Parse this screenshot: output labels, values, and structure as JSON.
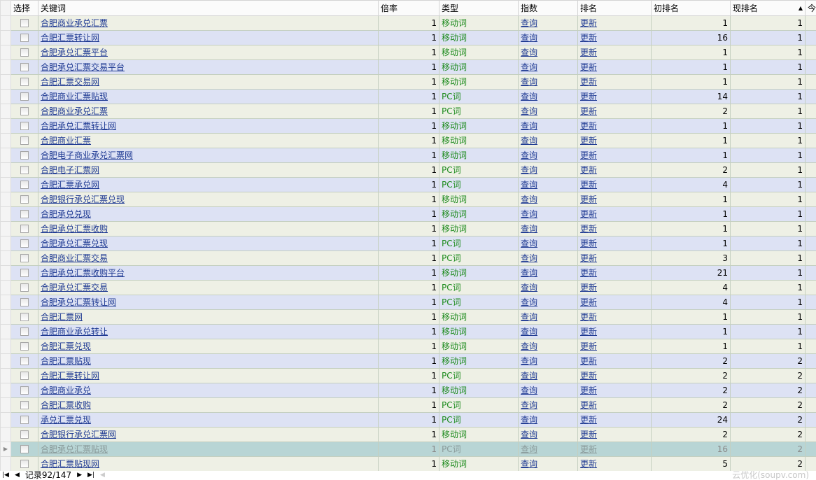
{
  "columns": [
    "选择",
    "关键词",
    "倍率",
    "类型",
    "指数",
    "排名",
    "初排名",
    "现排名",
    "今"
  ],
  "sort_icon": "sort-ascending-icon",
  "query_label": "查询",
  "update_label": "更新",
  "rows": [
    [
      "合肥商业承兑汇票",
      "1",
      "移动词",
      "1",
      "1"
    ],
    [
      "合肥汇票转让网",
      "1",
      "移动词",
      "16",
      "1"
    ],
    [
      "合肥承兑汇票平台",
      "1",
      "移动词",
      "1",
      "1"
    ],
    [
      "合肥承兑汇票交易平台",
      "1",
      "移动词",
      "1",
      "1"
    ],
    [
      "合肥汇票交易网",
      "1",
      "移动词",
      "1",
      "1"
    ],
    [
      "合肥商业汇票贴现",
      "1",
      "PC词",
      "14",
      "1"
    ],
    [
      "合肥商业承兑汇票",
      "1",
      "PC词",
      "2",
      "1"
    ],
    [
      "合肥承兑汇票转让网",
      "1",
      "移动词",
      "1",
      "1"
    ],
    [
      "合肥商业汇票",
      "1",
      "移动词",
      "1",
      "1"
    ],
    [
      "合肥电子商业承兑汇票网",
      "1",
      "移动词",
      "1",
      "1"
    ],
    [
      "合肥电子汇票网",
      "1",
      "PC词",
      "2",
      "1"
    ],
    [
      "合肥汇票承兑网",
      "1",
      "PC词",
      "4",
      "1"
    ],
    [
      "合肥银行承兑汇票兑现",
      "1",
      "移动词",
      "1",
      "1"
    ],
    [
      "合肥承兑兑现",
      "1",
      "移动词",
      "1",
      "1"
    ],
    [
      "合肥承兑汇票收购",
      "1",
      "移动词",
      "1",
      "1"
    ],
    [
      "合肥承兑汇票兑现",
      "1",
      "PC词",
      "1",
      "1"
    ],
    [
      "合肥商业汇票交易",
      "1",
      "PC词",
      "3",
      "1"
    ],
    [
      "合肥承兑汇票收购平台",
      "1",
      "移动词",
      "21",
      "1"
    ],
    [
      "合肥承兑汇票交易",
      "1",
      "PC词",
      "4",
      "1"
    ],
    [
      "合肥承兑汇票转让网",
      "1",
      "PC词",
      "4",
      "1"
    ],
    [
      "合肥汇票网",
      "1",
      "移动词",
      "1",
      "1"
    ],
    [
      "合肥商业承兑转让",
      "1",
      "移动词",
      "1",
      "1"
    ],
    [
      "合肥汇票兑现",
      "1",
      "移动词",
      "1",
      "1"
    ],
    [
      "合肥汇票贴现",
      "1",
      "移动词",
      "2",
      "2"
    ],
    [
      "合肥汇票转让网",
      "1",
      "PC词",
      "2",
      "2"
    ],
    [
      "合肥商业承兑",
      "1",
      "移动词",
      "2",
      "2"
    ],
    [
      "合肥汇票收购",
      "1",
      "PC词",
      "2",
      "2"
    ],
    [
      "承兑汇票兑现",
      "1",
      "PC词",
      "24",
      "2"
    ],
    [
      "合肥银行承兑汇票网",
      "1",
      "移动词",
      "2",
      "2"
    ],
    [
      "合肥承兑汇票贴现",
      "1",
      "PC词",
      "16",
      "2"
    ],
    [
      "合肥汇票贴现网",
      "1",
      "移动词",
      "5",
      "2"
    ]
  ],
  "selected_row": 29,
  "footer": {
    "record": "记录92/147"
  },
  "watermark": "云优化(soupv.com)"
}
